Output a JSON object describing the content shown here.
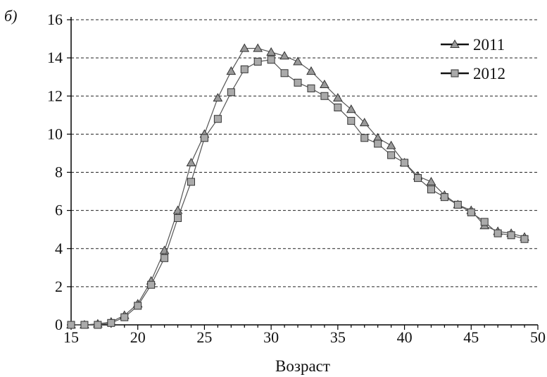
{
  "panel_label": "б)",
  "chart_data": {
    "type": "line",
    "title": "",
    "xlabel": "Возраст",
    "ylabel": "",
    "xlim": [
      15,
      50
    ],
    "ylim": [
      0,
      16
    ],
    "xticks": [
      15,
      20,
      25,
      30,
      35,
      40,
      45,
      50
    ],
    "yticks": [
      0,
      2,
      4,
      6,
      8,
      10,
      12,
      14,
      16
    ],
    "grid": "horizontal dashed",
    "legend_position": "top-right",
    "series": [
      {
        "name": "2011",
        "marker": "triangle",
        "color": "#999999",
        "x": [
          15,
          16,
          17,
          18,
          19,
          20,
          21,
          22,
          23,
          24,
          25,
          26,
          27,
          28,
          29,
          30,
          31,
          32,
          33,
          34,
          35,
          36,
          37,
          38,
          39,
          40,
          41,
          42,
          43,
          44,
          45,
          46,
          47,
          48,
          49
        ],
        "y": [
          0.0,
          0.0,
          0.05,
          0.15,
          0.5,
          1.1,
          2.3,
          3.9,
          6.0,
          8.5,
          10.0,
          11.9,
          13.3,
          14.5,
          14.5,
          14.3,
          14.1,
          13.8,
          13.3,
          12.6,
          11.9,
          11.3,
          10.6,
          9.8,
          9.4,
          8.5,
          7.8,
          7.5,
          6.8,
          6.3,
          6.0,
          5.2,
          4.9,
          4.8,
          4.6
        ]
      },
      {
        "name": "2012",
        "marker": "square",
        "color": "#aaaaaa",
        "x": [
          15,
          16,
          17,
          18,
          19,
          20,
          21,
          22,
          23,
          24,
          25,
          26,
          27,
          28,
          29,
          30,
          31,
          32,
          33,
          34,
          35,
          36,
          37,
          38,
          39,
          40,
          41,
          42,
          43,
          44,
          45,
          46,
          47,
          48,
          49
        ],
        "y": [
          0.0,
          0.0,
          0.0,
          0.1,
          0.4,
          1.0,
          2.1,
          3.5,
          5.6,
          7.5,
          9.8,
          10.8,
          12.2,
          13.4,
          13.8,
          13.9,
          13.2,
          12.7,
          12.4,
          12.0,
          11.4,
          10.7,
          9.8,
          9.5,
          8.9,
          8.5,
          7.7,
          7.1,
          6.7,
          6.3,
          5.9,
          5.4,
          4.8,
          4.7,
          4.5
        ]
      }
    ]
  }
}
